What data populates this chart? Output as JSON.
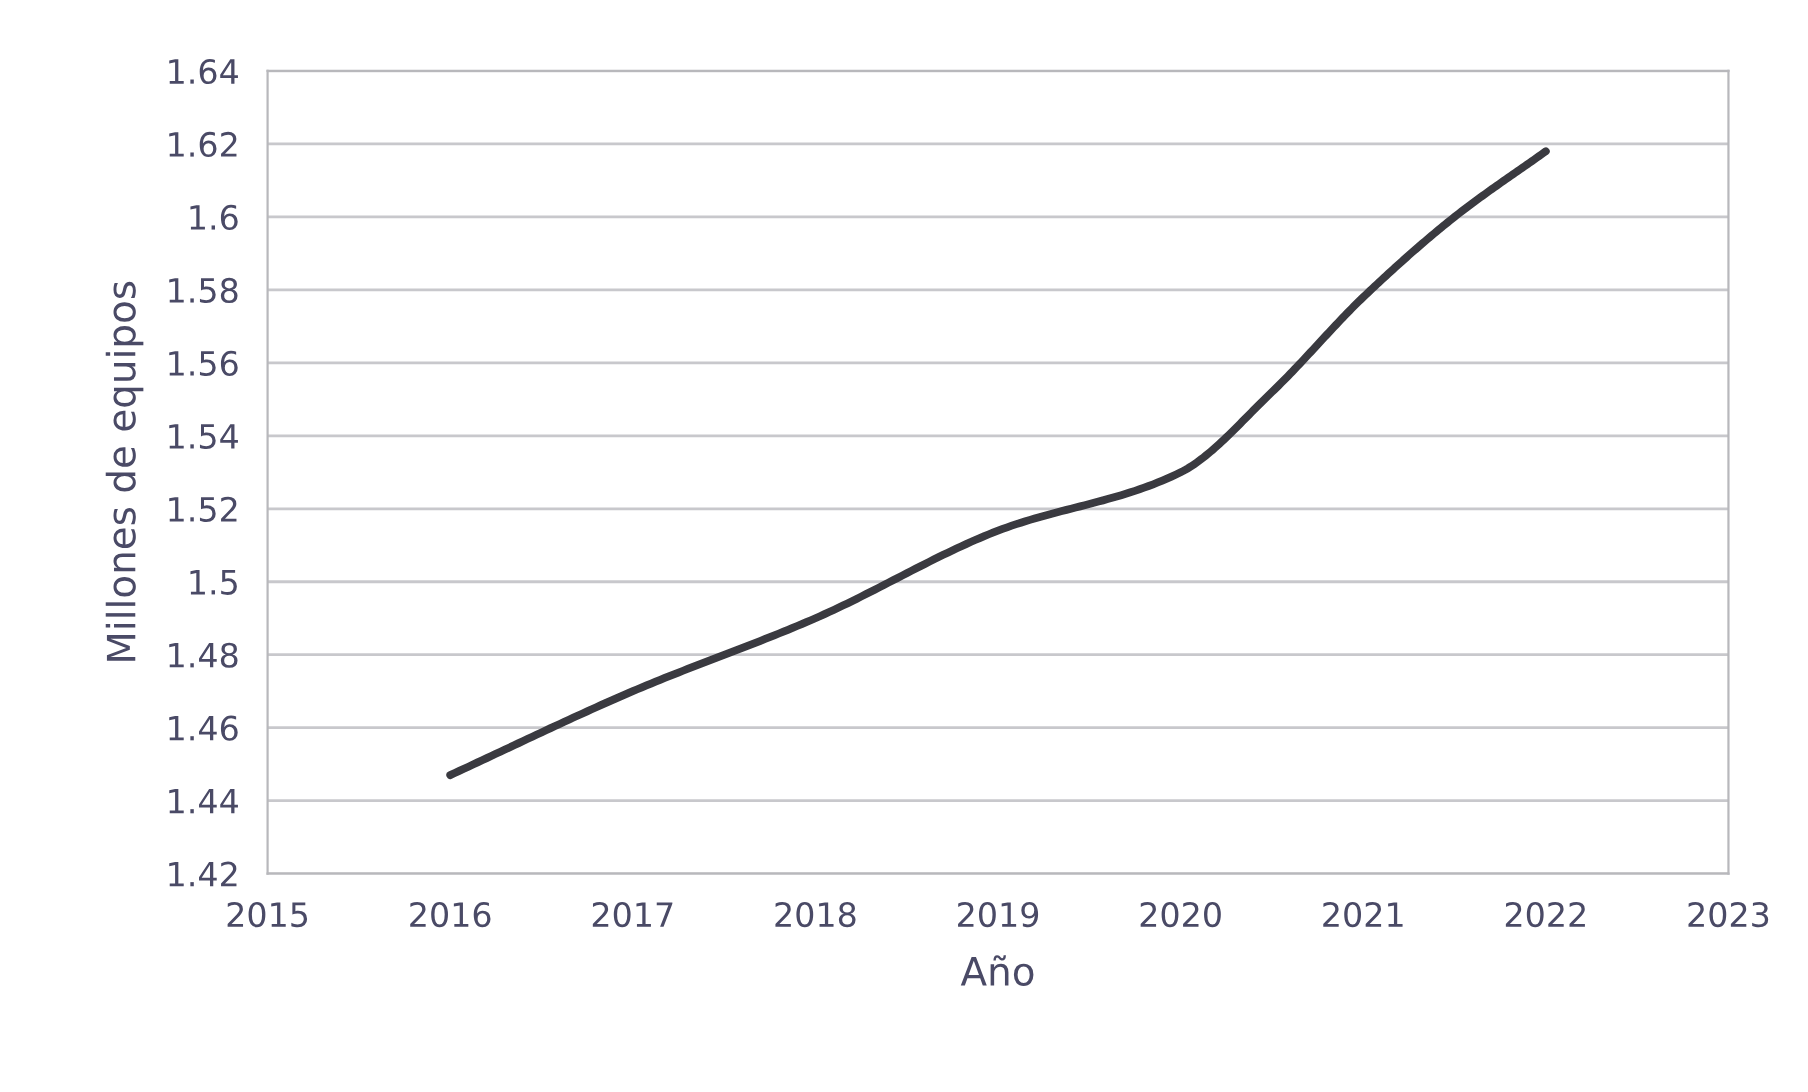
{
  "chart_data": {
    "type": "line",
    "xlabel": "Año",
    "ylabel": "Millones de equipos",
    "x": [
      2016,
      2017,
      2018,
      2019,
      2020,
      2020.5,
      2021,
      2021.5,
      2022
    ],
    "series": [
      {
        "color": "#3a3a40",
        "values": [
          1.447,
          1.47,
          1.49,
          1.514,
          1.53,
          1.552,
          1.578,
          1.6,
          1.618
        ]
      }
    ],
    "xlim": [
      2015,
      2023
    ],
    "xticks": [
      2015,
      2016,
      2017,
      2018,
      2019,
      2020,
      2021,
      2022,
      2023
    ],
    "ylim": [
      1.42,
      1.64
    ],
    "yticks": [
      1.42,
      1.44,
      1.46,
      1.48,
      1.5,
      1.52,
      1.54,
      1.56,
      1.58,
      1.6,
      1.62,
      1.64
    ],
    "grid": "y",
    "marker": "none",
    "line_style": "solid"
  }
}
